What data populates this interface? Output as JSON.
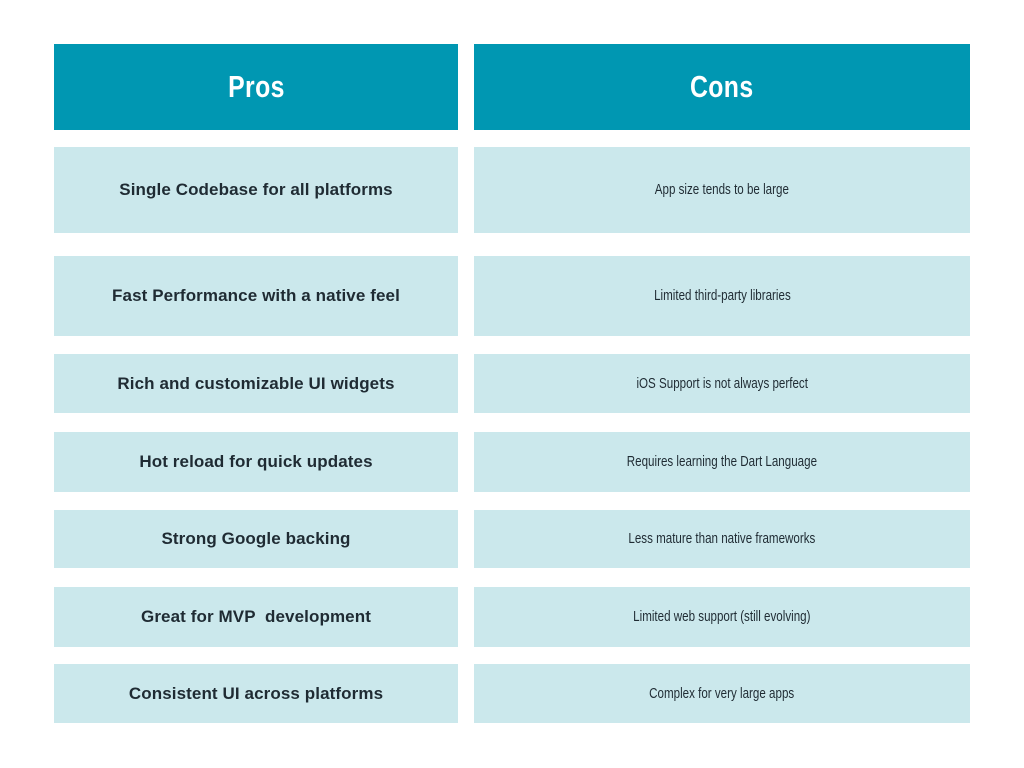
{
  "title": "Pros and Cons comparison table",
  "colors": {
    "header_bg": "#0097b2",
    "cell_bg": "#cbe8ec",
    "header_text": "#ffffff",
    "cell_text": "#1f2b33"
  },
  "pros": {
    "header": "Pros",
    "items": [
      "Single Codebase for all platforms",
      "Fast Performance with a native feel",
      "Rich and customizable UI widgets",
      "Hot reload for quick updates",
      "Strong Google backing",
      "Great for MVP  development",
      "Consistent UI across platforms"
    ]
  },
  "cons": {
    "header": "Cons",
    "items": [
      "App size tends to be large",
      "Limited third-party libraries",
      "iOS Support is not always perfect",
      "Requires learning the Dart Language",
      "Less mature than native frameworks",
      "Limited web support (still evolving)",
      "Complex for very large apps"
    ]
  }
}
